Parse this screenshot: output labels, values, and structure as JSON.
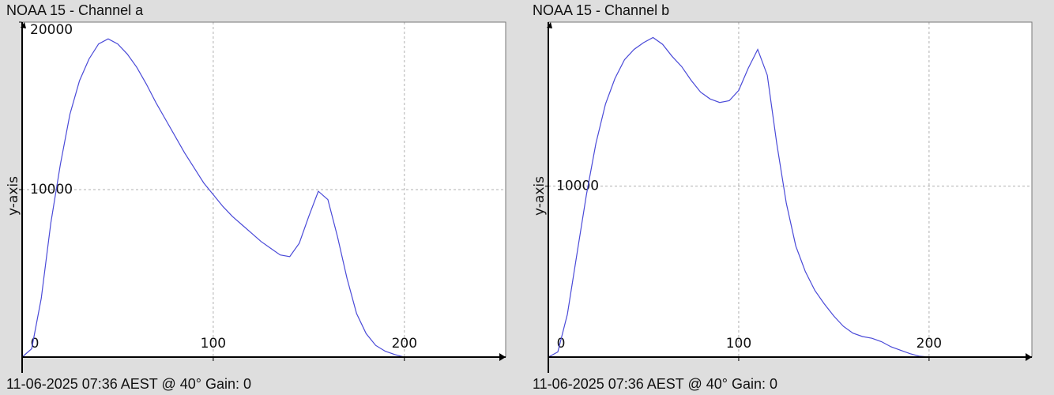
{
  "chart_data": [
    {
      "type": "line",
      "title": "NOAA 15 - Channel a",
      "ylabel": "y-axis",
      "footer": "11-06-2025 07:36 AEST @ 40° Gain: 0",
      "color": "#4a4ad8",
      "grid": true,
      "xlim": [
        0,
        253
      ],
      "ylim": [
        0,
        20000
      ],
      "xticks": [
        0,
        100,
        200
      ],
      "yticks": [
        10000,
        20000
      ],
      "x": [
        0,
        5,
        10,
        15,
        20,
        25,
        30,
        35,
        40,
        45,
        50,
        55,
        60,
        65,
        70,
        75,
        80,
        85,
        90,
        95,
        100,
        105,
        110,
        115,
        120,
        125,
        130,
        135,
        140,
        145,
        150,
        155,
        160,
        165,
        170,
        175,
        180,
        185,
        190,
        195,
        200
      ],
      "values": [
        0,
        500,
        3500,
        8000,
        11500,
        14500,
        16500,
        17800,
        18700,
        19000,
        18700,
        18100,
        17300,
        16300,
        15200,
        14200,
        13200,
        12200,
        11300,
        10400,
        9700,
        9000,
        8400,
        7900,
        7400,
        6900,
        6500,
        6100,
        6000,
        6800,
        8400,
        9900,
        9400,
        7200,
        4700,
        2600,
        1400,
        700,
        350,
        150,
        0
      ]
    },
    {
      "type": "line",
      "title": "NOAA 15 - Channel b",
      "ylabel": "y-axis",
      "footer": "11-06-2025 07:36 AEST @ 40° Gain: 0",
      "color": "#4a4ad8",
      "grid": true,
      "xlim": [
        0,
        254
      ],
      "ylim": [
        0,
        19600
      ],
      "xticks": [
        0,
        100,
        200
      ],
      "yticks": [
        10000
      ],
      "x": [
        0,
        5,
        10,
        15,
        20,
        25,
        30,
        35,
        40,
        45,
        50,
        55,
        60,
        65,
        70,
        75,
        80,
        85,
        90,
        95,
        100,
        105,
        110,
        115,
        120,
        125,
        130,
        135,
        140,
        145,
        150,
        155,
        160,
        165,
        170,
        175,
        180,
        185,
        190,
        195,
        200
      ],
      "values": [
        0,
        300,
        2500,
        6000,
        9500,
        12500,
        14800,
        16300,
        17400,
        18000,
        18400,
        18700,
        18300,
        17600,
        17000,
        16200,
        15500,
        15100,
        14900,
        15000,
        15600,
        16900,
        18000,
        16500,
        12500,
        9000,
        6500,
        5000,
        3900,
        3100,
        2400,
        1800,
        1400,
        1200,
        1100,
        900,
        600,
        400,
        200,
        50,
        0
      ]
    }
  ]
}
